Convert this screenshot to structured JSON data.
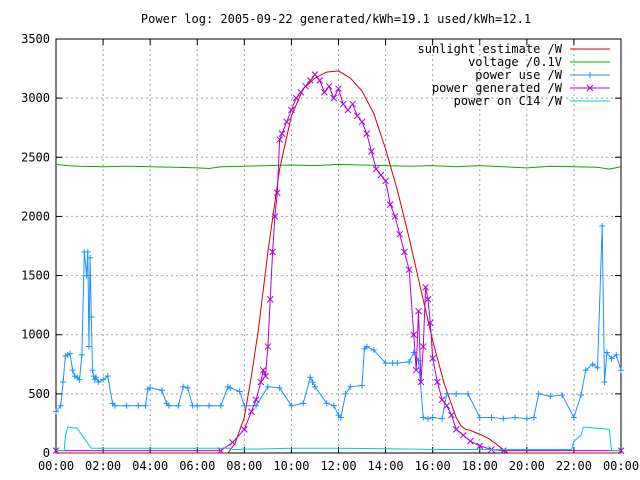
{
  "chart_data": {
    "type": "line",
    "title": "Power log: 2005-09-22 generated/kWh=19.1 used/kWh=12.1",
    "xlabel": "",
    "ylabel": "",
    "x_range_hours": [
      0,
      24
    ],
    "xlim_labels": [
      "00:00",
      "24:00"
    ],
    "ylim": [
      0,
      3500
    ],
    "x_tick_labels": [
      "00:00",
      "02:00",
      "04:00",
      "06:00",
      "08:00",
      "10:00",
      "12:00",
      "14:00",
      "16:00",
      "18:00",
      "20:00",
      "22:00",
      "00:00"
    ],
    "y_ticks": [
      0,
      500,
      1000,
      1500,
      2000,
      2500,
      3000,
      3500
    ],
    "grid": true,
    "legend_position": "top-right",
    "series": [
      {
        "name": "sunlight estimate /W",
        "color": "#cc0000",
        "marker": "none",
        "x": [
          0,
          7.3,
          7.6,
          8.0,
          8.3,
          8.6,
          9.0,
          9.5,
          10.0,
          10.5,
          11.0,
          11.5,
          12.0,
          12.5,
          13.0,
          13.5,
          14.0,
          14.5,
          15.0,
          15.5,
          16.0,
          16.5,
          17.0,
          17.2,
          17.4,
          17.6,
          18.0,
          18.4,
          18.8,
          19.2,
          24
        ],
        "y": [
          0,
          0,
          80,
          300,
          650,
          1050,
          1700,
          2400,
          2850,
          3080,
          3170,
          3220,
          3230,
          3170,
          3060,
          2870,
          2570,
          2220,
          1820,
          1380,
          950,
          580,
          300,
          230,
          200,
          190,
          160,
          120,
          60,
          0,
          0
        ]
      },
      {
        "name": "voltage /0.1V",
        "color": "#00aa00",
        "marker": "none",
        "x": [
          0,
          0.5,
          1,
          2,
          3,
          4,
          5,
          6,
          6.5,
          7,
          8,
          9,
          10,
          11,
          12,
          13,
          14,
          15,
          16,
          17,
          18,
          19,
          20,
          21,
          22,
          23,
          23.5,
          24
        ],
        "y": [
          2440,
          2430,
          2425,
          2420,
          2425,
          2420,
          2415,
          2410,
          2405,
          2420,
          2425,
          2430,
          2435,
          2430,
          2440,
          2435,
          2430,
          2425,
          2430,
          2420,
          2430,
          2420,
          2410,
          2425,
          2420,
          2415,
          2400,
          2420
        ]
      },
      {
        "name": "power use /W",
        "color": "#1e90ff",
        "marker": "+",
        "x": [
          0,
          0.2,
          0.3,
          0.4,
          0.5,
          0.6,
          0.7,
          0.8,
          0.9,
          1.0,
          1.1,
          1.2,
          1.3,
          1.35,
          1.4,
          1.45,
          1.5,
          1.55,
          1.6,
          1.65,
          1.7,
          1.8,
          2.0,
          2.2,
          2.4,
          2.5,
          3.0,
          3.5,
          3.8,
          3.9,
          4.0,
          4.5,
          4.7,
          4.8,
          5.2,
          5.4,
          5.6,
          5.8,
          6.0,
          6.5,
          7.0,
          7.3,
          7.4,
          7.8,
          8.0,
          8.5,
          9.0,
          9.5,
          10.0,
          10.5,
          10.8,
          10.9,
          11.0,
          11.5,
          11.8,
          12.0,
          12.1,
          12.3,
          12.5,
          13.0,
          13.1,
          13.2,
          13.5,
          14.0,
          14.3,
          14.5,
          15.0,
          15.2,
          15.4,
          15.6,
          15.8,
          16.0,
          16.4,
          16.6,
          17.0,
          17.5,
          18.0,
          18.5,
          19.0,
          19.5,
          20.0,
          20.3,
          20.5,
          21.0,
          21.5,
          22.0,
          22.3,
          22.5,
          22.8,
          23.0,
          23.2,
          23.3,
          23.4,
          23.6,
          23.8,
          24.0
        ],
        "y": [
          350,
          400,
          600,
          820,
          830,
          840,
          700,
          650,
          640,
          620,
          830,
          1700,
          1500,
          1700,
          900,
          1650,
          1150,
          700,
          650,
          620,
          640,
          600,
          620,
          650,
          420,
          400,
          400,
          400,
          400,
          540,
          550,
          530,
          420,
          400,
          400,
          560,
          550,
          400,
          400,
          400,
          400,
          560,
          550,
          520,
          400,
          400,
          560,
          550,
          400,
          420,
          640,
          600,
          560,
          420,
          400,
          320,
          300,
          500,
          560,
          570,
          880,
          900,
          870,
          760,
          760,
          760,
          770,
          850,
          780,
          300,
          290,
          300,
          290,
          500,
          500,
          500,
          300,
          300,
          290,
          300,
          290,
          300,
          500,
          480,
          490,
          300,
          490,
          700,
          750,
          720,
          1920,
          600,
          850,
          800,
          830,
          700
        ]
      },
      {
        "name": "power generated /W",
        "color": "#aa00dd",
        "marker": "x",
        "x": [
          0,
          7.0,
          7.5,
          8.0,
          8.3,
          8.5,
          8.7,
          8.8,
          8.9,
          9.0,
          9.1,
          9.2,
          9.3,
          9.4,
          9.5,
          9.6,
          9.8,
          10.0,
          10.2,
          10.4,
          10.6,
          10.8,
          11.0,
          11.2,
          11.4,
          11.6,
          11.8,
          12.0,
          12.2,
          12.4,
          12.6,
          12.8,
          13.0,
          13.2,
          13.4,
          13.6,
          13.8,
          14.0,
          14.2,
          14.4,
          14.6,
          14.8,
          15.0,
          15.2,
          15.3,
          15.4,
          15.5,
          15.6,
          15.7,
          15.8,
          15.9,
          16.0,
          16.2,
          16.4,
          16.6,
          16.8,
          17.0,
          17.3,
          17.6,
          18.0,
          18.5,
          19.0,
          24
        ],
        "y": [
          20,
          20,
          90,
          200,
          350,
          450,
          600,
          700,
          650,
          900,
          1300,
          1700,
          2000,
          2200,
          2650,
          2700,
          2800,
          2900,
          3000,
          3050,
          3100,
          3150,
          3200,
          3150,
          3050,
          3100,
          3000,
          3080,
          2950,
          2900,
          2950,
          2850,
          2800,
          2700,
          2550,
          2400,
          2350,
          2300,
          2100,
          2000,
          1850,
          1700,
          1550,
          1000,
          700,
          1200,
          600,
          900,
          1400,
          1300,
          1100,
          800,
          600,
          450,
          400,
          320,
          200,
          150,
          100,
          60,
          30,
          20,
          20
        ]
      },
      {
        "name": "power on C14 /W",
        "color": "#00cccc",
        "marker": "none",
        "x": [
          0,
          0.35,
          0.4,
          0.5,
          0.9,
          1.0,
          1.5,
          7.4,
          7.5,
          10.0,
          12.0,
          16.5,
          18.0,
          20.0,
          21.9,
          22.0,
          22.3,
          22.4,
          23.0,
          23.5,
          23.6,
          24
        ],
        "y": [
          20,
          20,
          150,
          220,
          210,
          180,
          40,
          40,
          30,
          40,
          40,
          30,
          30,
          30,
          30,
          100,
          150,
          220,
          210,
          200,
          20,
          20
        ]
      }
    ]
  }
}
